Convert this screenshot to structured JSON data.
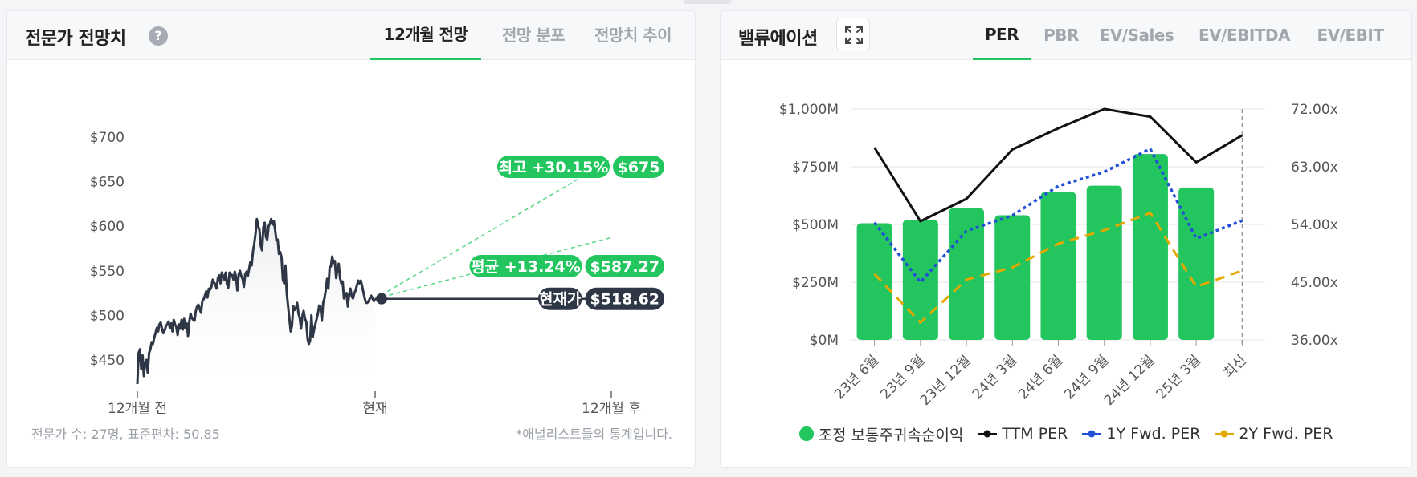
{
  "forecast_card": {
    "title": "전문가 전망치",
    "help_icon": "question-circle-icon",
    "tabs": [
      {
        "label": "12개월 전망",
        "active": true
      },
      {
        "label": "전망 분포",
        "active": false
      },
      {
        "label": "전망치 추이",
        "active": false
      }
    ],
    "y_ticks": [
      "$700",
      "$650",
      "$600",
      "$550",
      "$500",
      "$450"
    ],
    "x_ticks": [
      "12개월 전",
      "현재",
      "12개월 후"
    ],
    "high": {
      "label": "최고 +30.15%",
      "value": "$675",
      "price": 675
    },
    "avg": {
      "label": "평균 +13.24%",
      "value": "$587.27",
      "price": 587.27
    },
    "current": {
      "label": "현재가",
      "value": "$518.62",
      "price": 518.62
    },
    "footer_left": "전문가 수: 27명, 표준편차: 50.85",
    "footer_right": "*애널리스트들의 통계입니다.",
    "price_history": [
      423,
      458,
      462,
      440,
      455,
      432,
      447,
      450,
      436,
      458,
      462,
      470,
      468,
      475,
      480,
      486,
      482,
      490,
      492,
      485,
      480,
      483,
      488,
      490,
      493,
      486,
      491,
      482,
      495,
      490,
      487,
      478,
      490,
      485,
      495,
      484,
      496,
      486,
      491,
      477,
      493,
      502,
      497,
      495,
      494,
      505,
      510,
      512,
      507,
      503,
      516,
      518,
      522,
      527,
      520,
      530,
      529,
      532,
      540,
      537,
      535,
      530,
      542,
      545,
      536,
      548,
      544,
      540,
      548,
      535,
      531,
      548,
      546,
      545,
      540,
      549,
      543,
      528,
      546,
      550,
      544,
      541,
      532,
      546,
      549,
      544,
      552,
      560,
      556,
      572,
      581,
      592,
      608,
      600,
      596,
      578,
      573,
      599,
      604,
      588,
      585,
      600,
      603,
      608,
      602,
      606,
      596,
      584,
      585,
      569,
      571,
      565,
      540,
      536,
      556,
      525,
      511,
      497,
      482,
      488,
      510,
      506,
      508,
      514,
      502,
      497,
      485,
      499,
      505,
      496,
      493,
      474,
      468,
      472,
      500,
      476,
      484,
      490,
      496,
      502,
      511,
      509,
      494,
      514,
      519,
      528,
      541,
      530,
      554,
      555,
      566,
      559,
      561,
      542,
      552,
      558,
      542,
      536,
      538,
      519,
      522,
      525,
      510,
      524,
      530,
      521,
      519,
      525,
      528,
      534,
      539,
      536,
      539,
      533,
      526,
      519,
      514,
      514,
      516,
      519,
      522,
      519,
      516,
      518.62
    ]
  },
  "valuation_card": {
    "title": "밸류에이션",
    "expand_icon": "expand-icon",
    "tabs": [
      {
        "label": "PER",
        "active": true
      },
      {
        "label": "PBR",
        "active": false
      },
      {
        "label": "EV/Sales",
        "active": false
      },
      {
        "label": "EV/EBITDA",
        "active": false
      },
      {
        "label": "EV/EBIT",
        "active": false
      }
    ],
    "legend": [
      {
        "label": "조정 보통주귀속순이익",
        "color": "#22c55e",
        "kind": "dot"
      },
      {
        "label": "TTM PER",
        "color": "#111111",
        "kind": "line-dot"
      },
      {
        "label": "1Y Fwd. PER",
        "color": "#2150d6",
        "kind": "line-dot"
      },
      {
        "label": "2Y Fwd. PER",
        "color": "#e5a800",
        "kind": "line-dot"
      }
    ]
  },
  "chart_data": {
    "type": "bar",
    "categories": [
      "23년 6월",
      "23년 9월",
      "23년 12월",
      "24년 3월",
      "24년 6월",
      "24년 9월",
      "24년 12월",
      "25년 3월",
      "최신"
    ],
    "left_axis_ticks": [
      "$1,000M",
      "$750M",
      "$500M",
      "$250M",
      "$0M"
    ],
    "right_axis_ticks": [
      "72.00x",
      "63.00x",
      "54.00x",
      "45.00x",
      "36.00x"
    ],
    "ylim_left": [
      0,
      1000
    ],
    "ylim_right": [
      36,
      72
    ],
    "bar_series": {
      "name": "조정 보통주귀속순이익",
      "values": [
        505,
        520,
        570,
        540,
        640,
        668,
        805,
        660,
        null
      ]
    },
    "line_series": [
      {
        "name": "TTM PER",
        "color": "#111111",
        "values": [
          66,
          54.5,
          58,
          65.7,
          69,
          72,
          70.8,
          63.7,
          67.9
        ]
      },
      {
        "name": "1Y Fwd. PER",
        "color": "#2150d6",
        "values": [
          54.3,
          45,
          53,
          55.4,
          60,
          62.2,
          65.8,
          51.8,
          54.6
        ]
      },
      {
        "name": "2Y Fwd. PER",
        "color": "#e5a800",
        "values": [
          46.3,
          38.7,
          45.4,
          47.3,
          51,
          53.1,
          55.8,
          44.3,
          46.8
        ]
      }
    ]
  }
}
